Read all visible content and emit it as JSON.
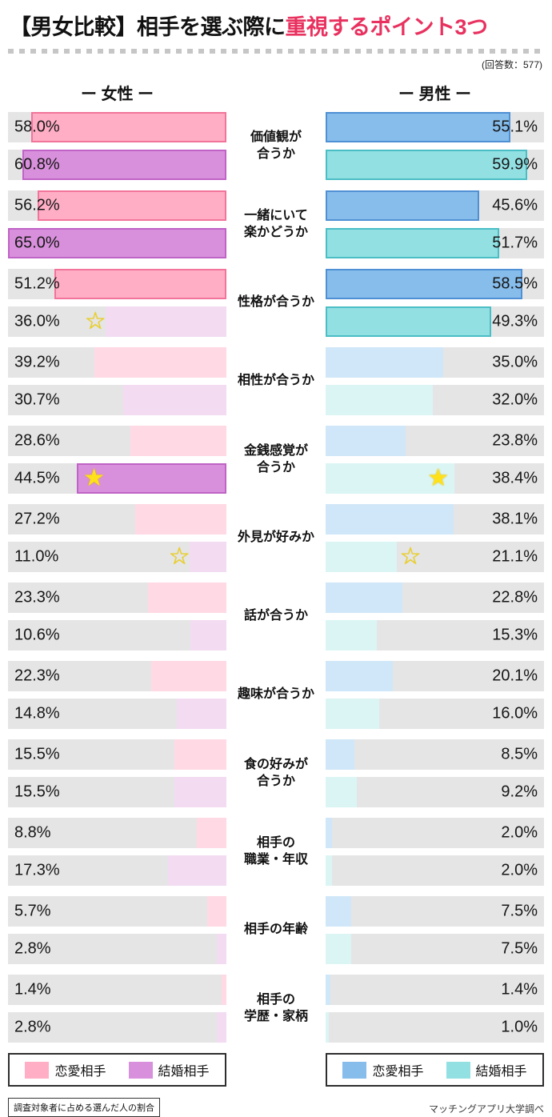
{
  "title": {
    "prefix": "【男女比較】相手を選ぶ際に",
    "highlight": "重視するポイント3つ"
  },
  "respondents": "(回答数：577)",
  "columns": {
    "female": "ー 女性 ー",
    "male": "ー 男性 ー"
  },
  "scale_max": 65,
  "colors": {
    "title_highlight": "#e8315f",
    "track": "#e6e5e6",
    "female_romance": {
      "fill": "#ffaec6",
      "border": "#f2749b",
      "light": "#ffd9e4"
    },
    "female_marriage": {
      "fill": "#d990dc",
      "border": "#bf63c6",
      "light": "#f3dbf2"
    },
    "male_romance": {
      "fill": "#87bdeb",
      "border": "#4f90d4",
      "light": "#cfe7f8"
    },
    "male_marriage": {
      "fill": "#93e0e3",
      "border": "#4abec5",
      "light": "#dbf5f5"
    },
    "star": "#ffe11a"
  },
  "rows": [
    {
      "label_lines": [
        "価値観が",
        "合うか"
      ],
      "female": {
        "romance": {
          "v": 58.0,
          "t": "58.0%",
          "hl": true
        },
        "marriage": {
          "v": 60.8,
          "t": "60.8%",
          "hl": true
        }
      },
      "male": {
        "romance": {
          "v": 55.1,
          "t": "55.1%",
          "hl": true
        },
        "marriage": {
          "v": 59.9,
          "t": "59.9%",
          "hl": true
        }
      }
    },
    {
      "label_lines": [
        "一緒にいて",
        "楽かどうか"
      ],
      "female": {
        "romance": {
          "v": 56.2,
          "t": "56.2%",
          "hl": true
        },
        "marriage": {
          "v": 65.0,
          "t": "65.0%",
          "hl": true
        }
      },
      "male": {
        "romance": {
          "v": 45.6,
          "t": "45.6%",
          "hl": true
        },
        "marriage": {
          "v": 51.7,
          "t": "51.7%",
          "hl": true
        }
      }
    },
    {
      "label_lines": [
        "性格が合うか"
      ],
      "female": {
        "romance": {
          "v": 51.2,
          "t": "51.2%",
          "hl": true
        },
        "marriage": {
          "v": 36.0,
          "t": "36.0%",
          "hl": false,
          "star": "outline"
        }
      },
      "male": {
        "romance": {
          "v": 58.5,
          "t": "58.5%",
          "hl": true
        },
        "marriage": {
          "v": 49.3,
          "t": "49.3%",
          "hl": true
        }
      }
    },
    {
      "label_lines": [
        "相性が合うか"
      ],
      "female": {
        "romance": {
          "v": 39.2,
          "t": "39.2%",
          "hl": false
        },
        "marriage": {
          "v": 30.7,
          "t": "30.7%",
          "hl": false
        }
      },
      "male": {
        "romance": {
          "v": 35.0,
          "t": "35.0%",
          "hl": false
        },
        "marriage": {
          "v": 32.0,
          "t": "32.0%",
          "hl": false
        }
      }
    },
    {
      "label_lines": [
        "金銭感覚が",
        "合うか"
      ],
      "female": {
        "romance": {
          "v": 28.6,
          "t": "28.6%",
          "hl": false
        },
        "marriage": {
          "v": 44.5,
          "t": "44.5%",
          "hl": true,
          "star": "filled"
        }
      },
      "male": {
        "romance": {
          "v": 23.8,
          "t": "23.8%",
          "hl": false
        },
        "marriage": {
          "v": 38.4,
          "t": "38.4%",
          "hl": false,
          "star": "filled"
        }
      }
    },
    {
      "label_lines": [
        "外見が好みか"
      ],
      "female": {
        "romance": {
          "v": 27.2,
          "t": "27.2%",
          "hl": false
        },
        "marriage": {
          "v": 11.0,
          "t": "11.0%",
          "hl": false,
          "star": "outline"
        }
      },
      "male": {
        "romance": {
          "v": 38.1,
          "t": "38.1%",
          "hl": false
        },
        "marriage": {
          "v": 21.1,
          "t": "21.1%",
          "hl": false,
          "star": "outline"
        }
      }
    },
    {
      "label_lines": [
        "話が合うか"
      ],
      "female": {
        "romance": {
          "v": 23.3,
          "t": "23.3%",
          "hl": false
        },
        "marriage": {
          "v": 10.6,
          "t": "10.6%",
          "hl": false
        }
      },
      "male": {
        "romance": {
          "v": 22.8,
          "t": "22.8%",
          "hl": false
        },
        "marriage": {
          "v": 15.3,
          "t": "15.3%",
          "hl": false
        }
      }
    },
    {
      "label_lines": [
        "趣味が合うか"
      ],
      "female": {
        "romance": {
          "v": 22.3,
          "t": "22.3%",
          "hl": false
        },
        "marriage": {
          "v": 14.8,
          "t": "14.8%",
          "hl": false
        }
      },
      "male": {
        "romance": {
          "v": 20.1,
          "t": "20.1%",
          "hl": false
        },
        "marriage": {
          "v": 16.0,
          "t": "16.0%",
          "hl": false
        }
      }
    },
    {
      "label_lines": [
        "食の好みが",
        "合うか"
      ],
      "female": {
        "romance": {
          "v": 15.5,
          "t": "15.5%",
          "hl": false
        },
        "marriage": {
          "v": 15.5,
          "t": "15.5%",
          "hl": false
        }
      },
      "male": {
        "romance": {
          "v": 8.5,
          "t": "8.5%",
          "hl": false
        },
        "marriage": {
          "v": 9.2,
          "t": "9.2%",
          "hl": false
        }
      }
    },
    {
      "label_lines": [
        "相手の",
        "職業・年収"
      ],
      "female": {
        "romance": {
          "v": 8.8,
          "t": "8.8%",
          "hl": false
        },
        "marriage": {
          "v": 17.3,
          "t": "17.3%",
          "hl": false
        }
      },
      "male": {
        "romance": {
          "v": 2.0,
          "t": "2.0%",
          "hl": false
        },
        "marriage": {
          "v": 2.0,
          "t": "2.0%",
          "hl": false
        }
      }
    },
    {
      "label_lines": [
        "相手の年齢"
      ],
      "female": {
        "romance": {
          "v": 5.7,
          "t": "5.7%",
          "hl": false
        },
        "marriage": {
          "v": 2.8,
          "t": "2.8%",
          "hl": false
        }
      },
      "male": {
        "romance": {
          "v": 7.5,
          "t": "7.5%",
          "hl": false
        },
        "marriage": {
          "v": 7.5,
          "t": "7.5%",
          "hl": false
        }
      }
    },
    {
      "label_lines": [
        "相手の",
        "学歴・家柄"
      ],
      "female": {
        "romance": {
          "v": 1.4,
          "t": "1.4%",
          "hl": false
        },
        "marriage": {
          "v": 2.8,
          "t": "2.8%",
          "hl": false
        }
      },
      "male": {
        "romance": {
          "v": 1.4,
          "t": "1.4%",
          "hl": false
        },
        "marriage": {
          "v": 1.0,
          "t": "1.0%",
          "hl": false
        }
      }
    }
  ],
  "legend": {
    "female": [
      {
        "label": "恋愛相手",
        "color": "#ffaec6"
      },
      {
        "label": "結婚相手",
        "color": "#d990dc"
      }
    ],
    "male": [
      {
        "label": "恋愛相手",
        "color": "#87bdeb"
      },
      {
        "label": "結婚相手",
        "color": "#93e0e3"
      }
    ]
  },
  "footnote": "調査対象者に占める選んだ人の割合",
  "source": "マッチングアプリ大学調べ",
  "chart_data": {
    "type": "bar",
    "orientation": "horizontal-mirrored",
    "unit": "%",
    "title": "【男女比較】相手を選ぶ際に重視するポイント3つ",
    "subtitle": "(回答数：577)",
    "xlim": [
      0,
      65
    ],
    "grid": false,
    "legend_position": "bottom",
    "categories": [
      "価値観が合うか",
      "一緒にいて楽かどうか",
      "性格が合うか",
      "相性が合うか",
      "金銭感覚が合うか",
      "外見が好みか",
      "話が合うか",
      "趣味が合うか",
      "食の好みが合うか",
      "相手の職業・年収",
      "相手の年齢",
      "相手の学歴・家柄"
    ],
    "series": [
      {
        "name": "女性・恋愛相手",
        "values": [
          58.0,
          56.2,
          51.2,
          39.2,
          28.6,
          27.2,
          23.3,
          22.3,
          15.5,
          8.8,
          5.7,
          1.4
        ]
      },
      {
        "name": "女性・結婚相手",
        "values": [
          60.8,
          65.0,
          36.0,
          30.7,
          44.5,
          11.0,
          10.6,
          14.8,
          15.5,
          17.3,
          2.8,
          2.8
        ]
      },
      {
        "name": "男性・恋愛相手",
        "values": [
          55.1,
          45.6,
          58.5,
          35.0,
          23.8,
          38.1,
          22.8,
          20.1,
          8.5,
          2.0,
          7.5,
          1.4
        ]
      },
      {
        "name": "男性・結婚相手",
        "values": [
          59.9,
          51.7,
          49.3,
          32.0,
          38.4,
          21.1,
          15.3,
          16.0,
          9.2,
          2.0,
          7.5,
          1.0
        ]
      }
    ],
    "annotations": "top-3 values of each series drawn saturated with border; stars mark notable romance-vs-marriage gaps (filled: 金銭感覚 44.5/38.4, outline: 性格 36.0, 外見 11.0/21.1)"
  }
}
